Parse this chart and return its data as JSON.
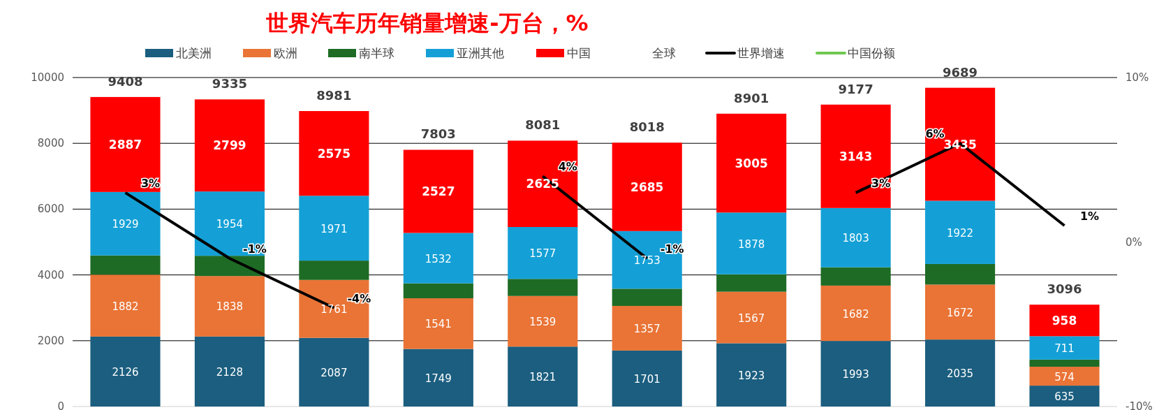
{
  "chart_data": {
    "type": "bar",
    "title": "世界汽车历年销量增速-万台，%",
    "stacked": true,
    "legend": "top",
    "categories": [
      null,
      null,
      null,
      null,
      null,
      null,
      null,
      null,
      null,
      null
    ],
    "ylim": [
      0,
      10000
    ],
    "yticks": [
      0,
      2000,
      4000,
      6000,
      8000,
      10000
    ],
    "y2lim": [
      -10,
      10
    ],
    "y2ticks": [
      {
        "value": -10,
        "label": "-10%"
      },
      {
        "value": 0,
        "label": "0%"
      },
      {
        "value": 10,
        "label": "10%"
      }
    ],
    "grid": "y",
    "tick_labels": "y",
    "series": [
      {
        "name": "北美洲",
        "color": "#1b5e7f",
        "values": [
          2126,
          2128,
          2087,
          1749,
          1821,
          1701,
          1923,
          1993,
          2035,
          635
        ],
        "value_labels": [
          "2126",
          "2128",
          "2087",
          "1749",
          "1821",
          "1701",
          "1923",
          "1993",
          "2035",
          "635"
        ]
      },
      {
        "name": "欧洲",
        "color": "#e97436",
        "values": [
          1882,
          1838,
          1761,
          1541,
          1539,
          1357,
          1567,
          1682,
          1672,
          574
        ],
        "value_labels": [
          "1882",
          "1838",
          "1761",
          "1541",
          "1539",
          "1357",
          "1567",
          "1682",
          "1672",
          "574"
        ]
      },
      {
        "name": "南半球",
        "color": "#1e6b25",
        "values": [
          584,
          616,
          587,
          454,
          519,
          522,
          528,
          556,
          625,
          218
        ]
      },
      {
        "name": "亚洲其他",
        "color": "#14a0d6",
        "values": [
          1929,
          1954,
          1971,
          1532,
          1577,
          1753,
          1878,
          1803,
          1922,
          711
        ],
        "value_labels": [
          "1929",
          "1954",
          "1971",
          "1532",
          "1577",
          "1753",
          "1878",
          "1803",
          "1922",
          "711"
        ]
      },
      {
        "name": "中国",
        "color": "#ff0000",
        "values": [
          2887,
          2799,
          2575,
          2527,
          2625,
          2685,
          3005,
          3143,
          3435,
          958
        ],
        "value_labels": [
          "2887",
          "2799",
          "2575",
          "2527",
          "2625",
          "2685",
          "3005",
          "3143",
          "3435",
          "958"
        ]
      },
      {
        "name": "全球",
        "type": "bar",
        "color": null,
        "values": [
          null,
          null,
          null,
          null,
          null,
          null,
          null,
          null,
          null,
          null
        ]
      },
      {
        "name": "世界增速",
        "type": "line",
        "axis": "y2",
        "color": "#000000",
        "values": [
          3,
          -1,
          -4,
          null,
          4,
          -1,
          null,
          3,
          6,
          1
        ],
        "value_labels": [
          "3%",
          "-1%",
          "-4%",
          null,
          "4%",
          "-1%",
          null,
          "3%",
          "6%",
          "1%"
        ]
      },
      {
        "name": "中国份额",
        "type": "line",
        "axis": "y2",
        "color": "#70c850",
        "values": [
          null,
          null,
          null,
          null,
          null,
          null,
          null,
          null,
          null,
          null
        ]
      }
    ],
    "totals": [
      "9408",
      "9335",
      "8981",
      "7803",
      "8081",
      "8018",
      "8901",
      "9177",
      "9689",
      "3096"
    ]
  }
}
